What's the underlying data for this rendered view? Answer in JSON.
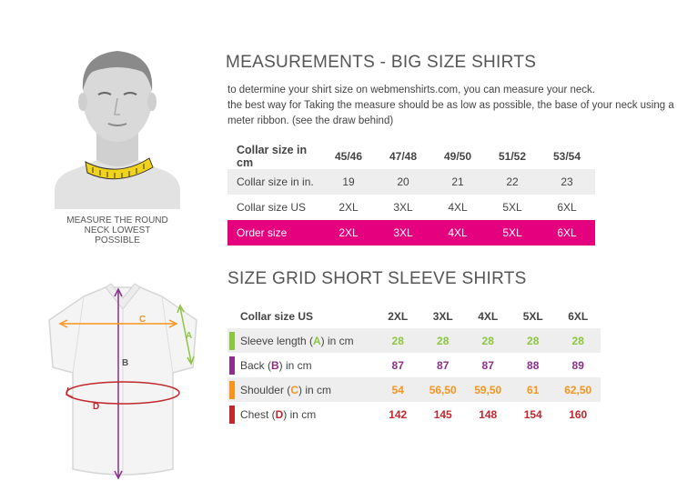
{
  "caption": {
    "line1": "MEASURE THE ROUND",
    "line2": "NECK LOWEST",
    "line3": "POSSIBLE"
  },
  "section1": {
    "title": "MEASUREMENTS - BIG SIZE SHIRTS",
    "intro1": "to determine your shirt size on webmenshirts.com, you can measure your neck.",
    "intro2": "the best way for Taking the measure should be as low as possible, the base of your neck using a",
    "intro3": "meter ribbon. (see the draw behind)",
    "rows": [
      {
        "label": "Collar size in cm",
        "cells": [
          "45/46",
          "47/48",
          "49/50",
          "51/52",
          "53/54"
        ]
      },
      {
        "label": "Collar size in in.",
        "cells": [
          "19",
          "20",
          "21",
          "22",
          "23"
        ]
      },
      {
        "label": "Collar size US",
        "cells": [
          "2XL",
          "3XL",
          "4XL",
          "5XL",
          "6XL"
        ]
      },
      {
        "label": "Order size",
        "cells": [
          "2XL",
          "3XL",
          "4XL",
          "5XL",
          "6XL"
        ]
      }
    ]
  },
  "section2": {
    "title": "SIZE GRID SHORT SLEEVE SHIRTS",
    "header": {
      "label": "Collar size US",
      "cells": [
        "2XL",
        "3XL",
        "4XL",
        "5XL",
        "6XL"
      ]
    },
    "rows": [
      {
        "pre": "Sleeve length (",
        "letter": "A",
        "post": ") in cm",
        "color": "#8cc63f",
        "cells": [
          "28",
          "28",
          "28",
          "28",
          "28"
        ]
      },
      {
        "pre": "Back (",
        "letter": "B",
        "post": ") in cm",
        "color": "#8b2f8a",
        "cells": [
          "87",
          "87",
          "87",
          "88",
          "89"
        ]
      },
      {
        "pre": "Shoulder (",
        "letter": "C",
        "post": ") in cm",
        "color": "#f7941d",
        "cells": [
          "54",
          "56,50",
          "59,50",
          "61",
          "62,50"
        ]
      },
      {
        "pre": "Chest (",
        "letter": "D",
        "post": ") in cm",
        "color": "#c1272d",
        "cells": [
          "142",
          "145",
          "148",
          "154",
          "160"
        ]
      }
    ]
  },
  "shirt_labels": {
    "a": "A",
    "b": "B",
    "c": "C",
    "d": "D"
  },
  "colors": {
    "accent": "#e5007d",
    "green": "#8cc63f",
    "purple": "#8b2f8a",
    "orange": "#f7941d",
    "red": "#c1272d"
  }
}
